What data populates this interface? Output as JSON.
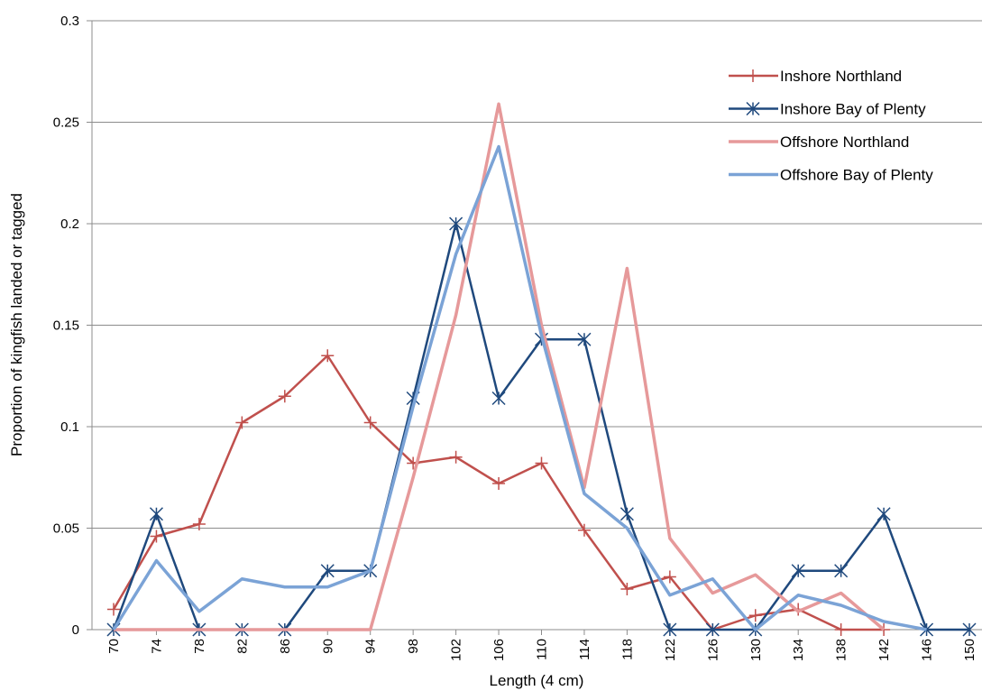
{
  "chart_data": {
    "type": "line",
    "categories": [
      "70",
      "74",
      "78",
      "82",
      "86",
      "90",
      "94",
      "98",
      "102",
      "106",
      "110",
      "114",
      "118",
      "122",
      "126",
      "130",
      "134",
      "138",
      "142",
      "146",
      "150"
    ],
    "series": [
      {
        "name": "Inshore Northland",
        "color": "#c0504d",
        "marker": "plus",
        "values": [
          0.01,
          0.046,
          0.052,
          0.102,
          0.115,
          0.135,
          0.102,
          0.082,
          0.085,
          0.072,
          0.082,
          0.049,
          0.02,
          0.026,
          0,
          0.007,
          0.01,
          0,
          0,
          null,
          null
        ]
      },
      {
        "name": "Inshore Bay of Plenty",
        "color": "#1f497d",
        "marker": "star",
        "values": [
          0,
          0.057,
          0,
          0,
          0,
          0.029,
          0.029,
          0.114,
          0.2,
          0.114,
          0.143,
          0.143,
          0.057,
          0,
          0,
          0,
          0.029,
          0.029,
          0.057,
          0,
          0
        ]
      },
      {
        "name": "Offshore Northland",
        "color": "#e6999a",
        "marker": "none",
        "values": [
          0,
          0,
          0,
          0,
          0,
          0,
          0,
          0.075,
          0.155,
          0.259,
          0.15,
          0.07,
          0.178,
          0.045,
          0.018,
          0.027,
          0.009,
          0.018,
          0,
          null,
          null
        ]
      },
      {
        "name": "Offshore Bay of Plenty",
        "color": "#7ba3d6",
        "marker": "none",
        "values": [
          0,
          0.034,
          0.009,
          0.025,
          0.021,
          0.021,
          0.029,
          0.11,
          0.185,
          0.238,
          0.145,
          0.067,
          0.05,
          0.017,
          0.025,
          0,
          0.017,
          0.012,
          0.004,
          0,
          null
        ]
      }
    ],
    "x_label": "Length (4 cm)",
    "y_label": "Proportion of kingfish landed or tagged",
    "ylim": [
      0,
      0.3
    ],
    "yticks": [
      0,
      0.05,
      0.1,
      0.15,
      0.2,
      0.25,
      0.3
    ],
    "grid": true,
    "legend": "upper right"
  }
}
